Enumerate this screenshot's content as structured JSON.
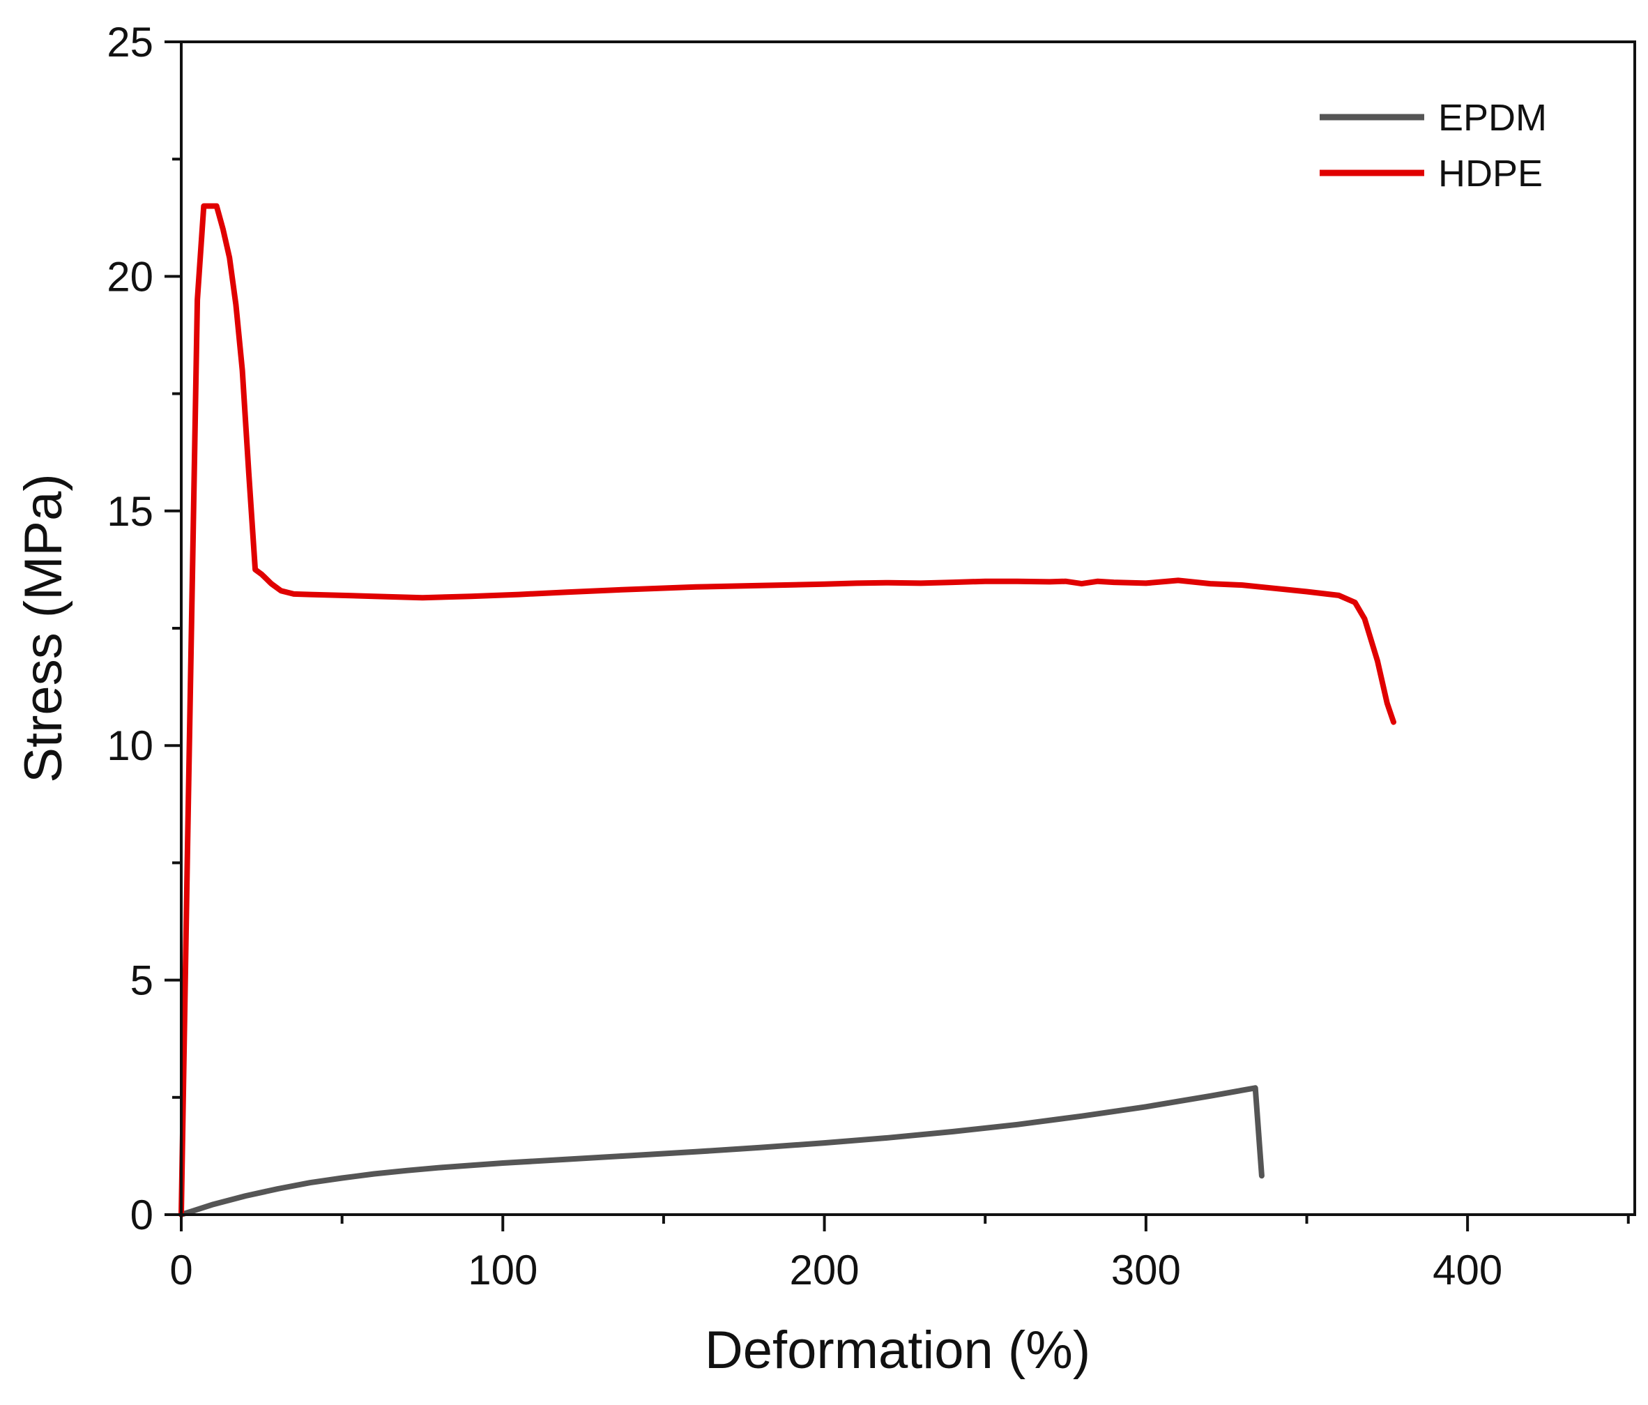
{
  "chart_data": {
    "type": "line",
    "title": "",
    "xlabel": "Deformation (%)",
    "ylabel": "Stress (MPa)",
    "xlim": [
      0,
      452
    ],
    "ylim": [
      0,
      25
    ],
    "x_ticks": [
      0,
      100,
      200,
      300,
      400
    ],
    "y_ticks": [
      0,
      5,
      10,
      15,
      20,
      25
    ],
    "x_minor_step": 50,
    "y_minor_step": 2.5,
    "grid": false,
    "legend_position": "top-right",
    "series": [
      {
        "name": "EPDM",
        "color": "#555555",
        "x": [
          0,
          10,
          20,
          30,
          40,
          50,
          60,
          70,
          80,
          100,
          120,
          140,
          160,
          180,
          200,
          220,
          240,
          260,
          280,
          300,
          320,
          334,
          336
        ],
        "y": [
          0,
          0.22,
          0.4,
          0.55,
          0.68,
          0.78,
          0.87,
          0.94,
          1.0,
          1.1,
          1.18,
          1.26,
          1.34,
          1.43,
          1.53,
          1.64,
          1.77,
          1.92,
          2.1,
          2.3,
          2.53,
          2.7,
          0.83
        ]
      },
      {
        "name": "HDPE",
        "color": "#e00000",
        "x": [
          0,
          2,
          5,
          7,
          9,
          11,
          13,
          15,
          17,
          19,
          21,
          23,
          25,
          28,
          31,
          35,
          40,
          50,
          60,
          75,
          90,
          105,
          120,
          140,
          160,
          180,
          200,
          210,
          220,
          230,
          240,
          250,
          260,
          270,
          275,
          280,
          285,
          290,
          300,
          310,
          320,
          330,
          340,
          350,
          360,
          365,
          368,
          372,
          375,
          377
        ],
        "y": [
          0,
          8,
          19.5,
          21.5,
          21.5,
          21.5,
          21.0,
          20.4,
          19.4,
          18.0,
          15.8,
          13.75,
          13.65,
          13.45,
          13.3,
          13.23,
          13.22,
          13.2,
          13.18,
          13.15,
          13.18,
          13.22,
          13.27,
          13.33,
          13.38,
          13.41,
          13.44,
          13.46,
          13.47,
          13.46,
          13.48,
          13.5,
          13.5,
          13.49,
          13.5,
          13.45,
          13.5,
          13.48,
          13.46,
          13.52,
          13.45,
          13.42,
          13.35,
          13.28,
          13.2,
          13.05,
          12.7,
          11.8,
          10.9,
          10.5
        ]
      }
    ]
  }
}
